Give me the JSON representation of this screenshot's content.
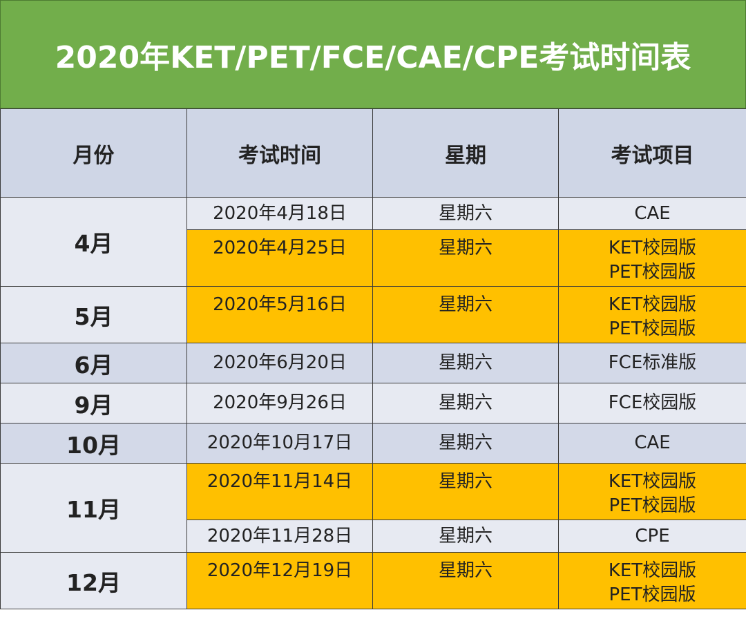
{
  "title": "2020年KET/PET/FCE/CAE/CPE考试时间表",
  "headers": {
    "month": "月份",
    "date": "考试时间",
    "weekday": "星期",
    "project": "考试项目"
  },
  "months": {
    "apr": "4月",
    "may": "5月",
    "jun": "6月",
    "sep": "9月",
    "oct": "10月",
    "nov": "11月",
    "dec": "12月"
  },
  "rows": [
    {
      "date": "2020年4月18日",
      "weekday": "星期六",
      "project": [
        "CAE"
      ]
    },
    {
      "date": "2020年4月25日",
      "weekday": "星期六",
      "project": [
        "KET校园版",
        "PET校园版"
      ]
    },
    {
      "date": "2020年5月16日",
      "weekday": "星期六",
      "project": [
        "KET校园版",
        "PET校园版"
      ]
    },
    {
      "date": "2020年6月20日",
      "weekday": "星期六",
      "project": [
        "FCE标准版"
      ]
    },
    {
      "date": "2020年9月26日",
      "weekday": "星期六",
      "project": [
        "FCE校园版"
      ]
    },
    {
      "date": "2020年10月17日",
      "weekday": "星期六",
      "project": [
        "CAE"
      ]
    },
    {
      "date": "2020年11月14日",
      "weekday": "星期六",
      "project": [
        "KET校园版",
        "PET校园版"
      ]
    },
    {
      "date": "2020年11月28日",
      "weekday": "星期六",
      "project": [
        "CPE"
      ]
    },
    {
      "date": "2020年12月19日",
      "weekday": "星期六",
      "project": [
        "KET校园版",
        "PET校园版"
      ]
    }
  ],
  "colors": {
    "title_bg": "#72ae4b",
    "header_bg": "#cfd6e6",
    "row_light": "#e7eaf2",
    "row_mid": "#d3d9e8",
    "highlight": "#ffc000"
  }
}
